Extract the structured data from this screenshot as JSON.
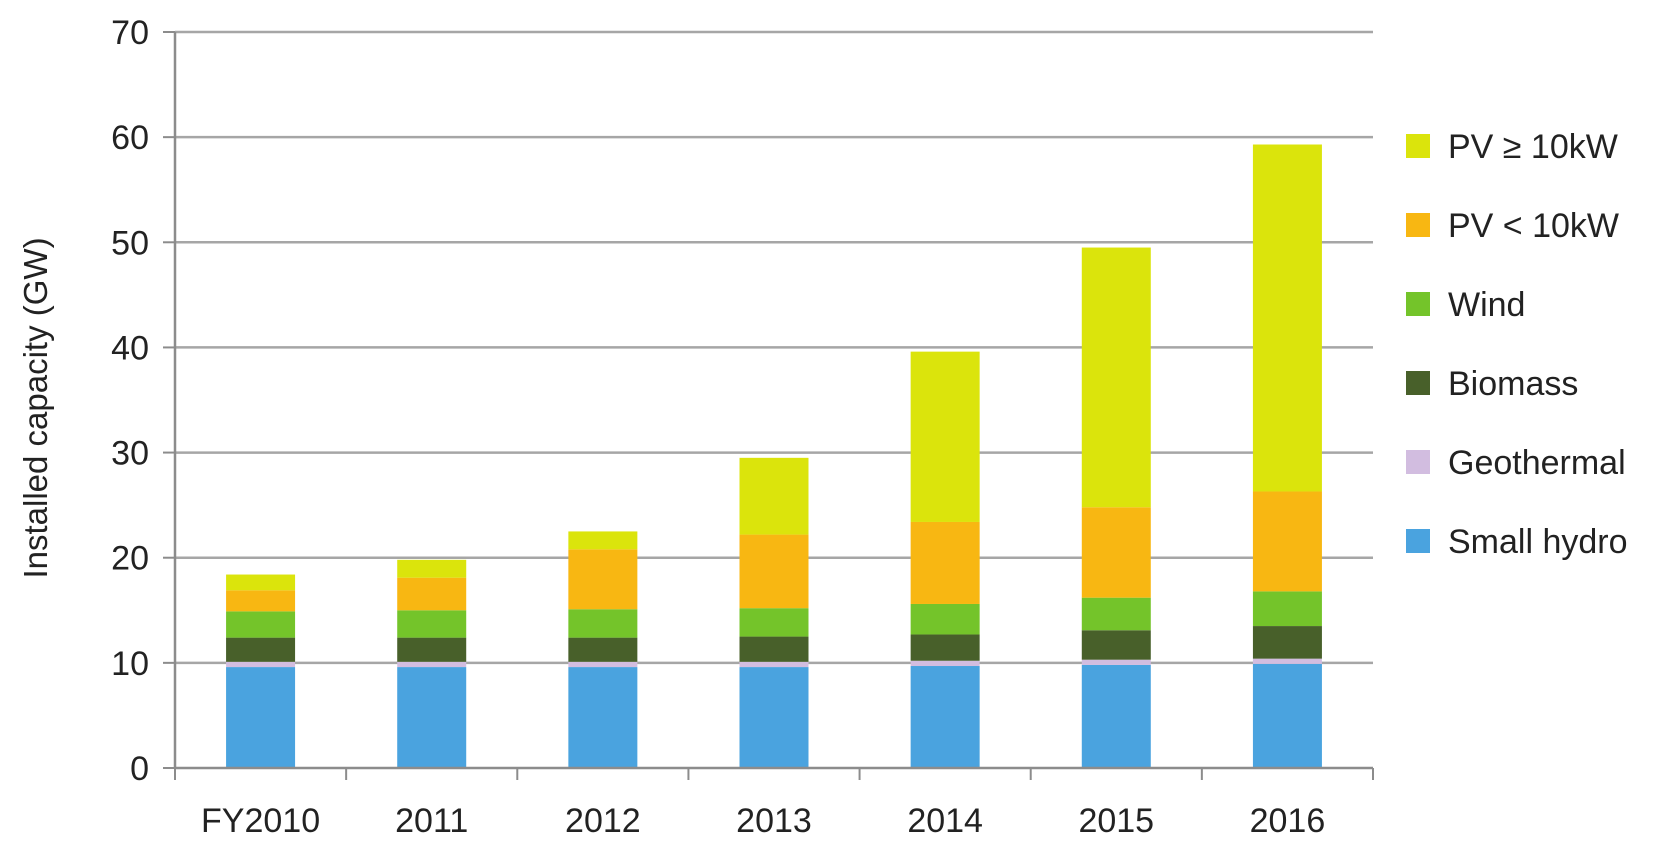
{
  "chart_data": {
    "type": "bar",
    "stacked": true,
    "title": "",
    "xlabel": "",
    "ylabel": "Installed capacity (GW)",
    "ylim": [
      0,
      70
    ],
    "yticks": [
      0,
      10,
      20,
      30,
      40,
      50,
      60,
      70
    ],
    "grid": true,
    "legend_position": "right",
    "categories": [
      "FY2010",
      "2011",
      "2012",
      "2013",
      "2014",
      "2015",
      "2016"
    ],
    "series": [
      {
        "name": "Small hydro",
        "color": "#4aa3df",
        "values": [
          9.6,
          9.6,
          9.6,
          9.6,
          9.7,
          9.8,
          9.9
        ]
      },
      {
        "name": "Geothermal",
        "color": "#d2bde0",
        "values": [
          0.5,
          0.5,
          0.5,
          0.5,
          0.5,
          0.5,
          0.5
        ]
      },
      {
        "name": "Biomass",
        "color": "#48602a",
        "values": [
          2.3,
          2.3,
          2.3,
          2.4,
          2.5,
          2.8,
          3.1
        ]
      },
      {
        "name": "Wind",
        "color": "#74c42a",
        "values": [
          2.5,
          2.6,
          2.7,
          2.7,
          2.9,
          3.1,
          3.3
        ]
      },
      {
        "name": "PV < 10kW",
        "color": "#f8b712",
        "values": [
          2.0,
          3.1,
          5.7,
          7.0,
          7.8,
          8.6,
          9.5
        ]
      },
      {
        "name": "PV ≥ 10kW",
        "color": "#dbe40c",
        "values": [
          1.5,
          1.7,
          1.7,
          7.3,
          16.2,
          24.7,
          33.0
        ]
      }
    ]
  }
}
